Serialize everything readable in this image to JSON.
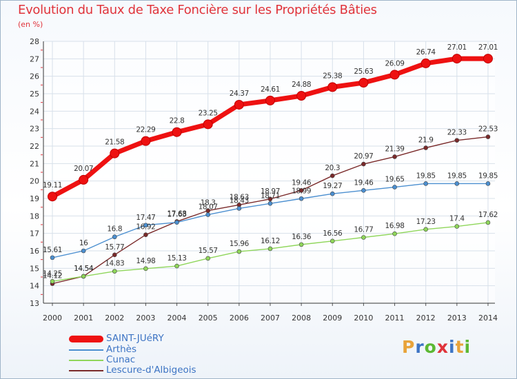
{
  "header": {
    "title": "Evolution du Taux de Taxe Foncière sur les Propriétés Bâties",
    "unit": "(en %)"
  },
  "logo": {
    "text": "Proxiti",
    "colors": [
      "#e8a33a",
      "#3d74c4",
      "#5cb833",
      "#e0333a",
      "#3d74c4",
      "#e8a33a",
      "#5cb833"
    ]
  },
  "colors": {
    "grid": "#d7e0ea",
    "axis": "#333333",
    "tick_minor": "#e0333a",
    "frame": "#9fb4c8"
  },
  "chart_data": {
    "type": "line",
    "title": "Evolution du Taux de Taxe Foncière sur les Propriétés Bâties",
    "ylabel": "(en %)",
    "xlabel": "",
    "x": [
      "2000",
      "2001",
      "2002",
      "2003",
      "2004",
      "2005",
      "2006",
      "2007",
      "2008",
      "2009",
      "2010",
      "2011",
      "2012",
      "2013",
      "2014"
    ],
    "ylim": [
      13,
      28
    ],
    "yticks": [
      13,
      14,
      15,
      16,
      17,
      18,
      19,
      20,
      21,
      22,
      23,
      24,
      25,
      26,
      27,
      28
    ],
    "grid": true,
    "legend": "bottom-left",
    "series": [
      {
        "name": "SAINT-JUéRY",
        "color": "#ee1111",
        "values": [
          19.11,
          20.07,
          21.58,
          22.29,
          22.8,
          23.25,
          24.37,
          24.61,
          24.88,
          25.38,
          25.63,
          26.09,
          26.74,
          27.01,
          27.01
        ],
        "labels": [
          "19.11",
          "20.07",
          "21.58",
          "22.29",
          "22.8",
          "23.25",
          "24.37",
          "24.61",
          "24.88",
          "25.38",
          "25.63",
          "26.09",
          "26.74",
          "27.01",
          "27.01"
        ]
      },
      {
        "name": "Arthès",
        "color": "#4b8fd0",
        "values": [
          15.61,
          16,
          16.8,
          17.47,
          17.63,
          18.07,
          18.43,
          18.71,
          18.99,
          19.27,
          19.46,
          19.65,
          19.85,
          19.85,
          19.85
        ],
        "labels": [
          "15.61",
          "16",
          "16.8",
          "17.47",
          "17.63",
          "18.07",
          "18.43",
          "18.71",
          "18.99",
          "19.27",
          "19.46",
          "19.65",
          "19.85",
          "19.85",
          "19.85"
        ]
      },
      {
        "name": "Cunac",
        "color": "#8fd65a",
        "values": [
          14.25,
          14.54,
          14.83,
          14.98,
          15.13,
          15.57,
          15.96,
          16.12,
          16.36,
          16.56,
          16.77,
          16.98,
          17.23,
          17.4,
          17.62
        ],
        "labels": [
          "14.25",
          "14.54",
          "14.83",
          "14.98",
          "15.13",
          "15.57",
          "15.96",
          "16.12",
          "16.36",
          "16.56",
          "16.77",
          "16.98",
          "17.23",
          "17.4",
          "17.62"
        ]
      },
      {
        "name": "Lescure-d'Albigeois",
        "color": "#7a2a2a",
        "values": [
          14.12,
          14.54,
          15.77,
          16.92,
          17.68,
          18.3,
          18.63,
          18.97,
          19.46,
          20.3,
          20.97,
          21.39,
          21.9,
          22.33,
          22.53
        ],
        "labels": [
          "14.12",
          "14.54",
          "15.77",
          "16.92",
          "17.68",
          "18.3",
          "18.63",
          "18.97",
          "19.46",
          "20.3",
          "20.97",
          "21.39",
          "21.9",
          "22.33",
          "22.53"
        ]
      }
    ]
  }
}
